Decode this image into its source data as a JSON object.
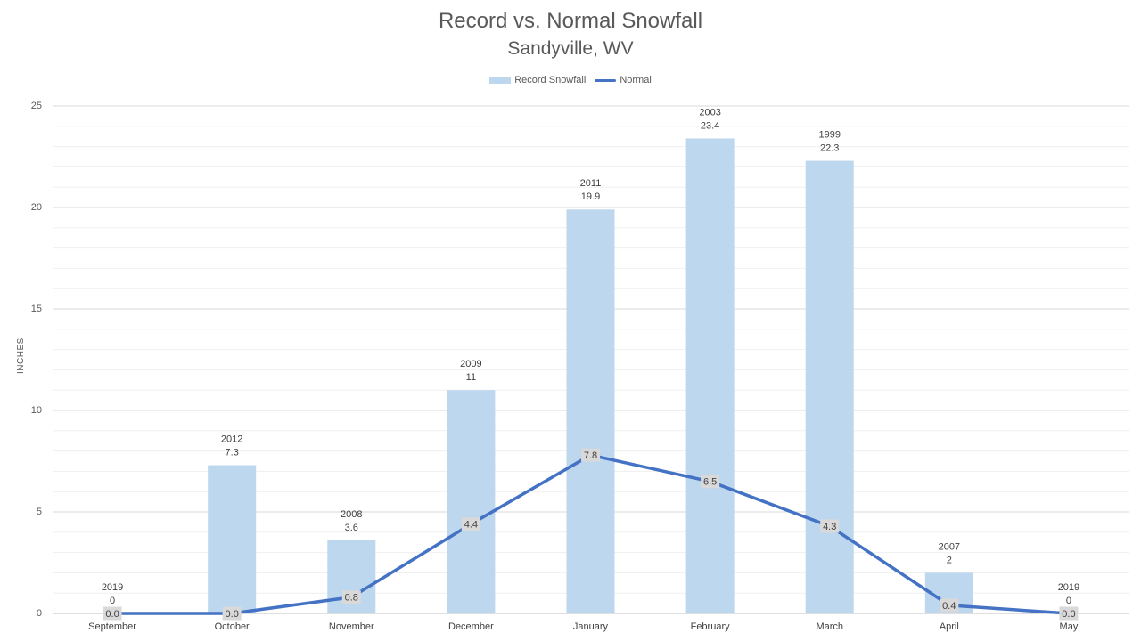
{
  "chart_data": {
    "type": "bar",
    "title": "Record vs. Normal Snowfall",
    "subtitle": "Sandyville, WV",
    "xlabel": "",
    "ylabel": "INCHES",
    "ylim": [
      0,
      25
    ],
    "yticks": [
      "0",
      "5",
      "10",
      "15",
      "20",
      "25"
    ],
    "grid": true,
    "legend_position": "top",
    "categories": [
      "September",
      "October",
      "November",
      "December",
      "January",
      "February",
      "March",
      "April",
      "May"
    ],
    "series": [
      {
        "name": "Record Snowfall",
        "type": "bar",
        "color": "#bdd7ee",
        "values": [
          0,
          7.3,
          3.6,
          11,
          19.9,
          23.4,
          22.3,
          2,
          0
        ],
        "value_labels": [
          "0",
          "7.3",
          "3.6",
          "11",
          "19.9",
          "23.4",
          "22.3",
          "2",
          "0"
        ],
        "year_labels": [
          "2019",
          "2012",
          "2008",
          "2009",
          "2011",
          "2003",
          "1999",
          "2007",
          "2019"
        ]
      },
      {
        "name": "Normal",
        "type": "line",
        "color": "#4472c4",
        "values": [
          0,
          0,
          0.8,
          4.4,
          7.8,
          6.5,
          4.3,
          0.4,
          0
        ],
        "value_labels": [
          "0.0",
          "0.0",
          "0.8",
          "4.4",
          "7.8",
          "6.5",
          "4.3",
          "0.4",
          "0.0"
        ]
      }
    ]
  }
}
